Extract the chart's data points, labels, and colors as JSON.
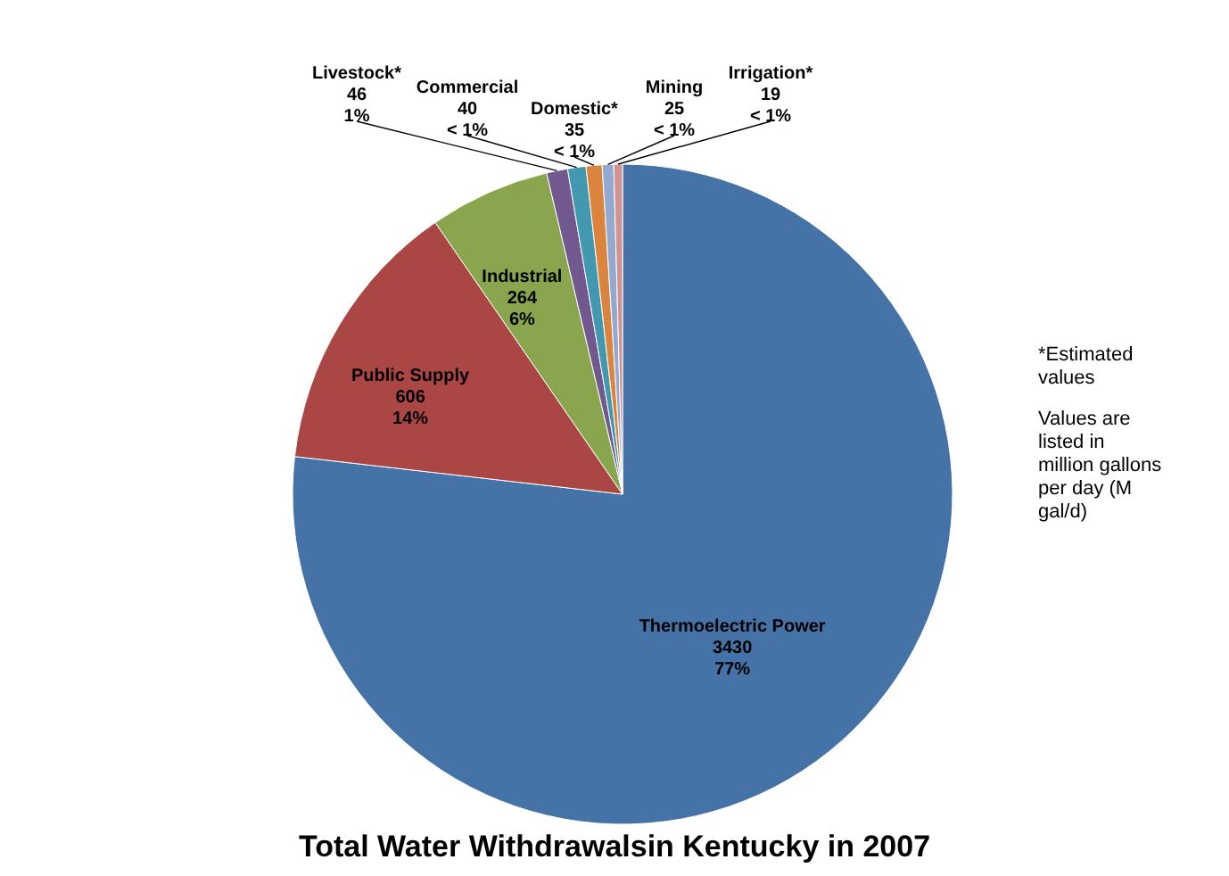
{
  "chart_data": {
    "type": "pie",
    "title": "Total Water Withdrawalsin Kentucky in 2007",
    "categories": [
      "Thermoelectric Power",
      "Public Supply",
      "Industrial",
      "Livestock*",
      "Commercial",
      "Domestic*",
      "Mining",
      "Irrigation*"
    ],
    "values": [
      3430,
      606,
      264,
      46,
      40,
      35,
      25,
      19
    ],
    "colors": [
      "#4572a7",
      "#aa4643",
      "#89a54e",
      "#71588f",
      "#4198af",
      "#db843d",
      "#93a9cf",
      "#d19392"
    ],
    "value_labels": [
      "3430 77%",
      "606 14%",
      "264 6%",
      "46 1%",
      "40 < 1%",
      "35 < 1%",
      "25 < 1%",
      "19 < 1%"
    ],
    "annotations": [
      "*Estimated values",
      "Values are listed in million gallons per day (M gal/d)"
    ]
  }
}
